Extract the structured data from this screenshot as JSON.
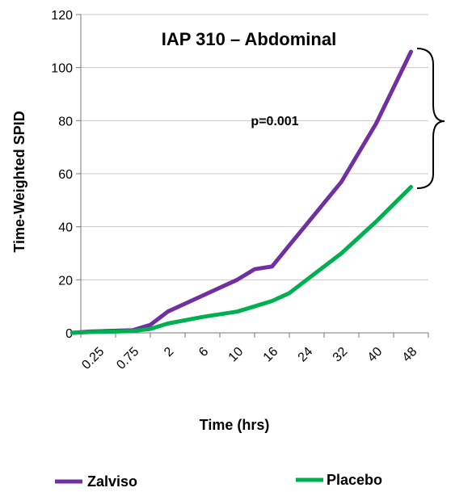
{
  "chart_data": {
    "type": "line",
    "title": "IAP 310 – Abdominal",
    "xlabel": "Time (hrs)",
    "ylabel": "Time-Weighted SPID",
    "categories": [
      "0.25",
      "0.75",
      "2",
      "6",
      "10",
      "16",
      "24",
      "32",
      "40",
      "48"
    ],
    "ylim": [
      0,
      120
    ],
    "yticks": [
      0,
      20,
      40,
      60,
      80,
      100,
      120
    ],
    "grid": true,
    "legend_position": "bottom",
    "annotation": "p=0.001",
    "series": [
      {
        "name": "Zalviso",
        "color": "#7030a0",
        "x": [
          0.25,
          0.75,
          1.5,
          2,
          2.5,
          3,
          4,
          5,
          5.5,
          6,
          6.5,
          7,
          8,
          9,
          10
        ],
        "values": [
          0,
          0.5,
          0.8,
          1,
          3,
          8,
          14,
          20,
          24,
          25,
          33,
          41,
          57,
          79,
          106
        ]
      },
      {
        "name": "Placebo",
        "color": "#00b050",
        "x": [
          0.25,
          0.75,
          1.5,
          2,
          2.5,
          3,
          4,
          5,
          5.5,
          6,
          6.5,
          7,
          8,
          9,
          10
        ],
        "values": [
          0,
          0.3,
          0.5,
          0.7,
          1.5,
          3.5,
          6,
          8,
          10,
          12,
          15,
          20,
          30,
          42,
          55
        ]
      }
    ]
  }
}
